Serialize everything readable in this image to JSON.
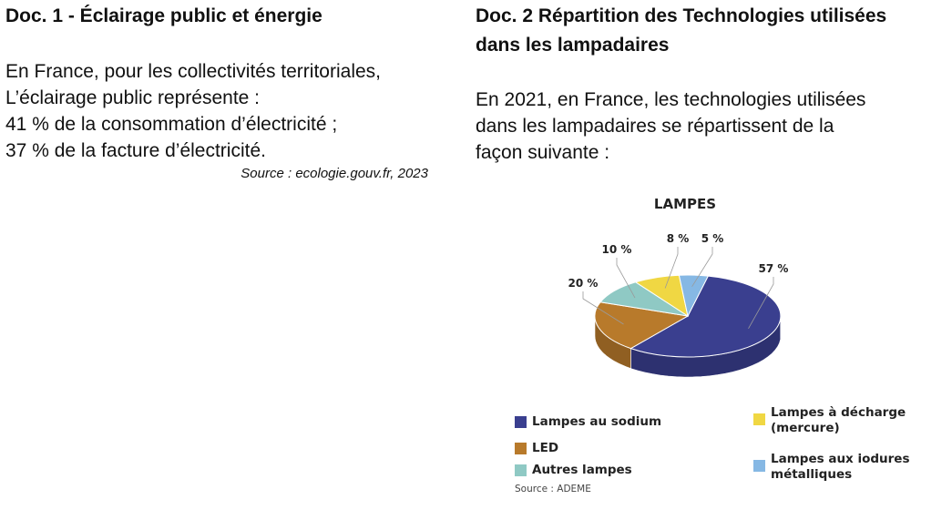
{
  "doc1": {
    "title": "Doc. 1 - Éclairage public et énergie",
    "lines": [
      "En France, pour les collectivités territoriales,",
      "L’éclairage public représente :",
      "41 % de la consommation d’électricité ;",
      "37 % de la facture d’électricité."
    ],
    "source": "Source : ecologie.gouv.fr, 2023"
  },
  "doc2": {
    "title_line1": "Doc. 2 Répartition des Technologies utilisées",
    "title_line2": "dans les lampadaires",
    "lines": [
      "En 2021, en France, les technologies utilisées",
      "dans les lampadaires se répartissent de la",
      "façon suivante :"
    ],
    "source": "Source : ADEME"
  },
  "chart_data": {
    "type": "pie",
    "title": "LAMPES",
    "slices": [
      {
        "name": "Lampes au sodium",
        "value": 57,
        "label": "57 %",
        "color": "#3a3f8f"
      },
      {
        "name": "LED",
        "value": 20,
        "label": "20 %",
        "color": "#b87a2b"
      },
      {
        "name": "Autres lampes",
        "value": 10,
        "label": "10 %",
        "color": "#8fc9c4"
      },
      {
        "name": "Lampes à décharge (mercure)",
        "value": 8,
        "label": "8 %",
        "color": "#f0d743"
      },
      {
        "name": "Lampes aux iodures métalliques",
        "value": 5,
        "label": "5 %",
        "color": "#86b8e4"
      }
    ],
    "legend": {
      "sodium": "Lampes au sodium",
      "led": "LED",
      "autres": "Autres lampes",
      "decharge_l1": "Lampes à décharge",
      "decharge_l2": "(mercure)",
      "iodures_l1": "Lampes aux iodures",
      "iodures_l2": "métalliques"
    }
  }
}
